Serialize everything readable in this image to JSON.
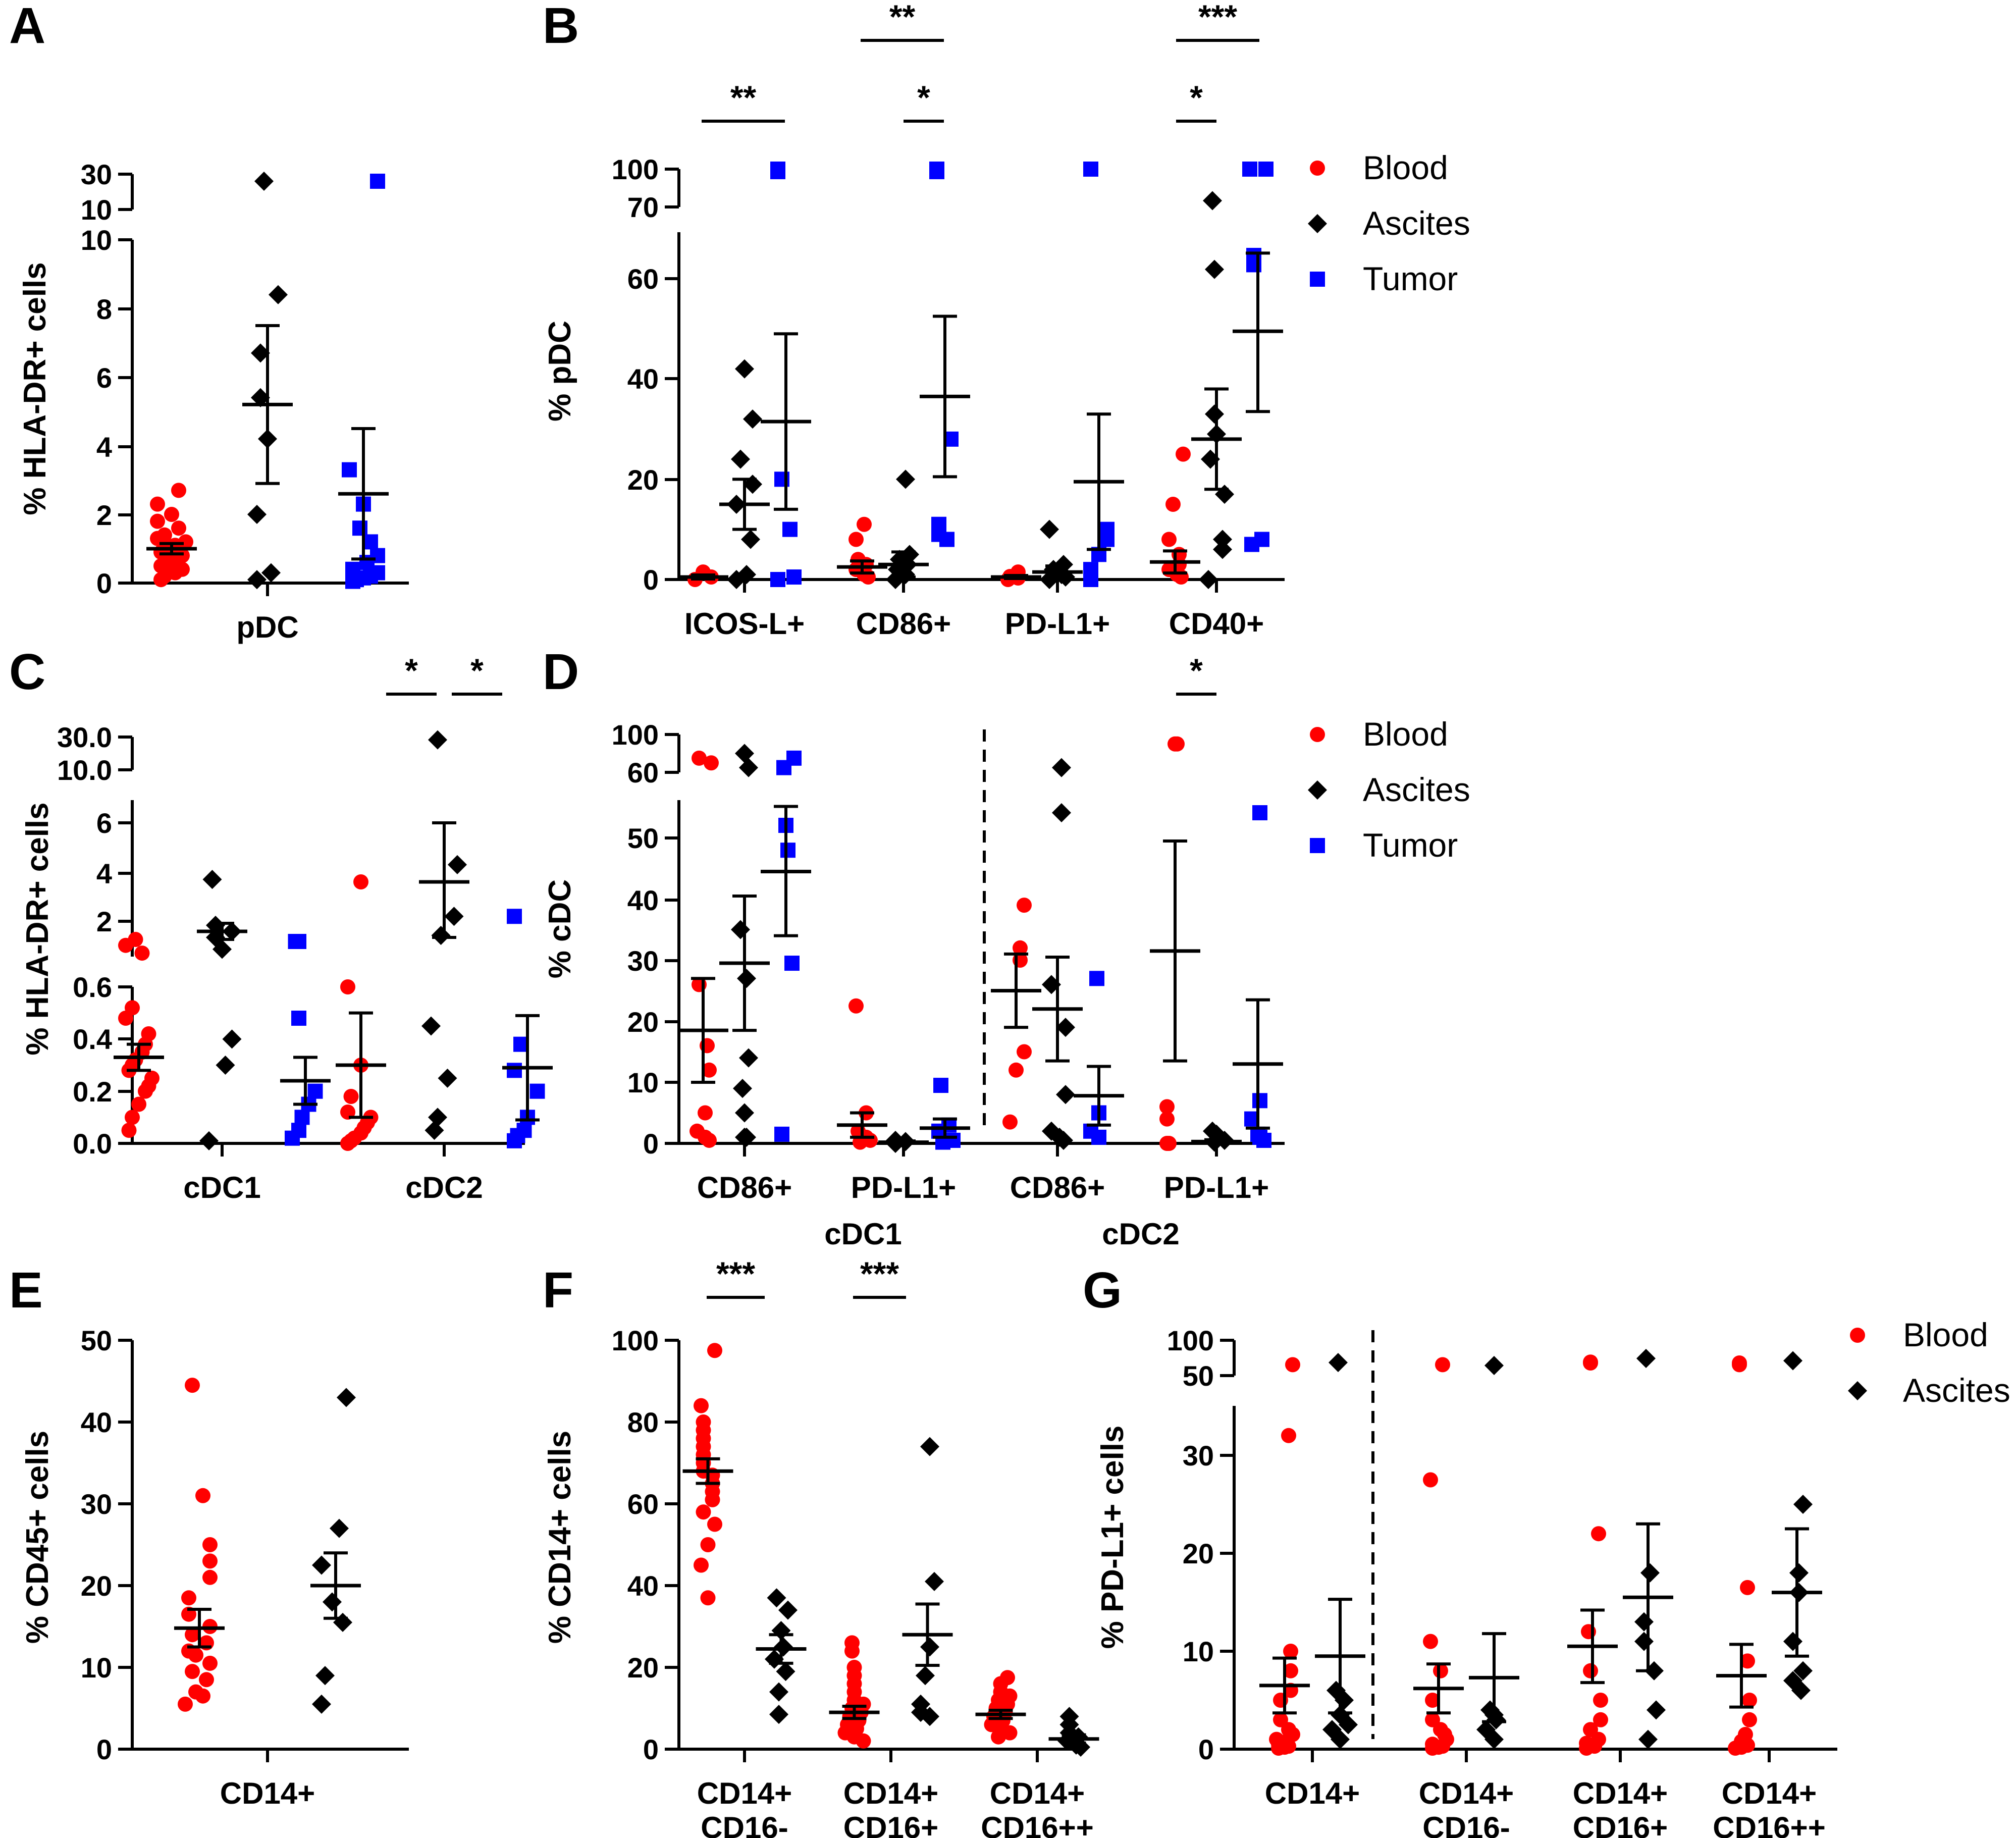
{
  "colors": {
    "Blood": "#ff0000",
    "Ascites": "#000000",
    "Tumor": "#0000ff"
  },
  "chart_data": [
    {
      "panel": "A",
      "type": "scatter",
      "ylabel": "% HLA-DR+ cells",
      "yaxis": {
        "ticks": [
          "0",
          "2",
          "4",
          "6",
          "8",
          "10"
        ],
        "break_ticks": [
          "10",
          "30"
        ]
      },
      "categories": [
        "pDC"
      ],
      "series": [
        {
          "name": "Blood",
          "values": [
            [
              0.1,
              0.3,
              0.4,
              0.5,
              0.6,
              0.7,
              0.8,
              0.9,
              1.0,
              1.1,
              1.2,
              1.4,
              1.6,
              1.8,
              2.0,
              2.3,
              2.7,
              0.2,
              0.9,
              1.3
            ]
          ],
          "mean": [
            1.0
          ],
          "sem": [
            0.15
          ]
        },
        {
          "name": "Ascites",
          "values": [
            [
              0.1,
              0.3,
              2.0,
              4.2,
              5.4,
              6.7,
              8.4,
              26
            ]
          ],
          "mean": [
            5.2
          ],
          "sem": [
            2.3
          ]
        },
        {
          "name": "Tumor",
          "values": [
            [
              0.05,
              0.1,
              0.15,
              0.2,
              0.3,
              0.4,
              0.6,
              0.8,
              1.2,
              1.6,
              2.3,
              3.3,
              26
            ]
          ],
          "mean": [
            2.6
          ],
          "sem": [
            1.9
          ]
        }
      ],
      "group_labels": [
        "pDC"
      ]
    },
    {
      "panel": "B",
      "type": "scatter",
      "ylabel": "% pDC",
      "yaxis": {
        "ticks": [
          "0",
          "20",
          "40",
          "60"
        ],
        "break_ticks": [
          "70",
          "100"
        ]
      },
      "categories": [
        "ICOS-L+",
        "CD86+",
        "PD-L1+",
        "CD40+"
      ],
      "series": [
        {
          "name": "Blood",
          "values": [
            [
              0,
              0.5,
              1.5
            ],
            [
              0.5,
              1,
              2,
              3,
              4,
              8,
              11
            ],
            [
              0,
              0.3,
              0.6,
              1.5
            ],
            [
              0.5,
              1,
              2,
              3,
              5,
              8,
              15,
              25
            ]
          ],
          "mean": [
            0.5,
            2.5,
            0.5,
            3.5
          ],
          "sem": [
            0.4,
            1.2,
            0.3,
            2.2
          ]
        },
        {
          "name": "Ascites",
          "values": [
            [
              0,
              1,
              8,
              15,
              19,
              24,
              32,
              42
            ],
            [
              0,
              1,
              2,
              3,
              4,
              5,
              20
            ],
            [
              0,
              0.5,
              1,
              2,
              3,
              10
            ],
            [
              0,
              6,
              8,
              17,
              24,
              29,
              33,
              62,
              75
            ]
          ],
          "mean": [
            15,
            3,
            1.5,
            28
          ],
          "sem": [
            5,
            2.5,
            1.2,
            10
          ]
        },
        {
          "name": "Tumor",
          "values": [
            [
              0,
              0.5,
              10,
              20,
              98,
              100
            ],
            [
              8,
              9,
              11,
              28,
              98,
              100
            ],
            [
              0,
              2,
              5,
              8,
              10,
              100
            ],
            [
              7,
              8,
              63,
              65,
              100,
              100
            ]
          ],
          "mean": [
            31.5,
            36.5,
            19.5,
            49.5
          ],
          "sem": [
            17.5,
            16,
            13.5,
            16
          ]
        }
      ],
      "significance": [
        "**",
        "**",
        "*",
        "***",
        "*"
      ],
      "legend": [
        "Blood",
        "Ascites",
        "Tumor"
      ]
    },
    {
      "panel": "C",
      "type": "scatter",
      "ylabel": "% HLA-DR+ cells",
      "yaxis": {
        "ticks": [
          "0.0",
          "0.2",
          "0.4",
          "0.6"
        ],
        "mid_ticks": [
          "2",
          "4",
          "6"
        ],
        "break_ticks": [
          "10.0",
          "30.0"
        ]
      },
      "categories": [
        "cDC1",
        "cDC2"
      ],
      "series": [
        {
          "name": "Blood",
          "values": [
            [
              0.05,
              0.1,
              0.15,
              0.2,
              0.22,
              0.25,
              0.28,
              0.3,
              0.32,
              0.35,
              0.38,
              0.42,
              0.48,
              0.52,
              0.7,
              0.9,
              1.1
            ],
            [
              0,
              0.01,
              0.02,
              0.04,
              0.06,
              0.08,
              0.1,
              0.12,
              0.18,
              0.3,
              0.6,
              3.6
            ]
          ],
          "mean": [
            0.33,
            0.3
          ],
          "sem": [
            0.05,
            0.2
          ]
        },
        {
          "name": "Ascites",
          "values": [
            [
              0.01,
              0.3,
              0.4,
              0.8,
              1.2,
              1.5,
              1.8,
              3.7
            ],
            [
              0.05,
              0.1,
              0.25,
              0.45,
              1.3,
              2.2,
              4.3,
              28
            ]
          ],
          "mean": [
            1.5,
            3.6
          ],
          "sem": [
            0.4,
            2.4
          ]
        },
        {
          "name": "Tumor",
          "values": [
            [
              0.02,
              0.05,
              0.1,
              0.15,
              0.2,
              0.48,
              1.0,
              1.0
            ],
            [
              0.01,
              0.03,
              0.05,
              0.1,
              0.2,
              0.28,
              0.38,
              2.2
            ]
          ],
          "mean": [
            0.24,
            0.29
          ],
          "sem": [
            0.09,
            0.2
          ]
        }
      ],
      "significance": [
        "*",
        "*"
      ]
    },
    {
      "panel": "D",
      "type": "scatter",
      "ylabel": "% cDC",
      "yaxis": {
        "ticks": [
          "0",
          "10",
          "20",
          "30",
          "40",
          "50"
        ],
        "break_ticks": [
          "60",
          "100"
        ]
      },
      "categories": [
        "CD86+",
        "PD-L1+",
        "CD86+",
        "PD-L1+"
      ],
      "group_labels": [
        "cDC1",
        "cDC2"
      ],
      "series": [
        {
          "name": "Blood",
          "values": [
            [
              0.5,
              1,
              2,
              5,
              12,
              16,
              26,
              70,
              75
            ],
            [
              0.2,
              0.5,
              1,
              2,
              5,
              22.5
            ],
            [
              3.5,
              12,
              15,
              30,
              32,
              39
            ],
            [
              0,
              0,
              4,
              6,
              90,
              90
            ]
          ],
          "mean": [
            18.5,
            3,
            25,
            31.5
          ],
          "sem": [
            8.5,
            2,
            6,
            18
          ]
        },
        {
          "name": "Ascites",
          "values": [
            [
              1,
              1,
              5,
              9,
              14,
              27,
              35,
              65,
              80
            ],
            [
              0,
              0.3,
              0.5
            ],
            [
              0.5,
              1,
              2,
              8,
              19,
              26,
              54,
              65
            ],
            [
              0.2,
              0.5,
              1.5,
              2
            ]
          ],
          "mean": [
            29.5,
            0.2,
            22,
            0.3
          ],
          "sem": [
            11,
            0.2,
            8.5,
            0.3
          ]
        },
        {
          "name": "Tumor",
          "values": [
            [
              1.5,
              29.5,
              48,
              52,
              65,
              75
            ],
            [
              0.2,
              0.5,
              2,
              3,
              9.5
            ],
            [
              1,
              2,
              5,
              27
            ],
            [
              0.5,
              1,
              1.5,
              4,
              7,
              54
            ]
          ],
          "mean": [
            44.5,
            2.5,
            7.8,
            13
          ],
          "sem": [
            10.5,
            1.5,
            4.8,
            10.5
          ]
        }
      ],
      "significance": [
        "*"
      ],
      "legend": [
        "Blood",
        "Ascites",
        "Tumor"
      ]
    },
    {
      "panel": "E",
      "type": "scatter",
      "ylabel": "% CD45+ cells",
      "yaxis": {
        "ticks": [
          "0",
          "10",
          "20",
          "30",
          "40",
          "50"
        ],
        "ylim": [
          0,
          50
        ]
      },
      "categories": [
        "CD14+"
      ],
      "series": [
        {
          "name": "Blood",
          "values": [
            [
              5.5,
              6.5,
              7,
              8.5,
              9.5,
              10.5,
              11.5,
              12,
              13,
              14,
              15,
              16.5,
              18.5,
              21,
              23,
              25,
              31,
              44.5
            ]
          ],
          "mean": [
            14.8
          ],
          "sem": [
            2.3
          ]
        },
        {
          "name": "Ascites",
          "values": [
            [
              5.5,
              9,
              15.5,
              18,
              22.5,
              27,
              43
            ]
          ],
          "mean": [
            20
          ],
          "sem": [
            4
          ]
        }
      ]
    },
    {
      "panel": "F",
      "type": "scatter",
      "ylabel": "% CD14+ cells",
      "yaxis": {
        "ticks": [
          "0",
          "20",
          "40",
          "60",
          "80",
          "100"
        ],
        "ylim": [
          0,
          100
        ]
      },
      "categories": [
        "CD14+\nCD16-",
        "CD14+\nCD16+",
        "CD14+\nCD16++"
      ],
      "series": [
        {
          "name": "Blood",
          "values": [
            [
              37,
              45,
              50,
              55,
              58,
              61,
              63,
              65,
              67,
              68,
              70,
              72,
              74,
              76,
              78,
              80,
              84,
              97.5
            ],
            [
              2,
              3,
              4,
              5,
              6,
              7,
              8,
              9,
              10,
              11,
              12,
              14,
              16,
              18,
              20,
              24,
              26
            ],
            [
              3,
              4,
              5,
              6,
              7,
              8,
              9,
              10,
              11,
              12,
              13,
              14,
              16,
              17.5
            ]
          ],
          "mean": [
            68,
            9,
            8.5
          ],
          "sem": [
            3,
            1.5,
            1
          ]
        },
        {
          "name": "Ascites",
          "values": [
            [
              8.5,
              14,
              19,
              22,
              25,
              29,
              34,
              37
            ],
            [
              8,
              9,
              11,
              18,
              25,
              41,
              74
            ],
            [
              0.5,
              1,
              2,
              3,
              4,
              6,
              8
            ]
          ],
          "mean": [
            24.5,
            28,
            2.5
          ],
          "sem": [
            3.5,
            7.5,
            1
          ]
        }
      ],
      "significance": [
        "***",
        "***"
      ]
    },
    {
      "panel": "G",
      "type": "scatter",
      "ylabel": "% PD-L1+ cells",
      "yaxis": {
        "ticks": [
          "0",
          "10",
          "20",
          "30"
        ],
        "break_ticks": [
          "50",
          "100"
        ]
      },
      "categories": [
        "CD14+",
        "CD14+\nCD16-",
        "CD14+\nCD16+",
        "CD14+\nCD16++"
      ],
      "series": [
        {
          "name": "Blood",
          "values": [
            [
              0.1,
              0.2,
              0.3,
              0.5,
              0.8,
              1,
              1.5,
              2,
              3,
              5,
              6,
              8,
              10,
              32,
              48
            ],
            [
              0.1,
              0.2,
              0.3,
              0.5,
              1,
              1.5,
              2,
              3,
              5,
              8,
              11,
              27.5,
              48
            ],
            [
              0.1,
              0.3,
              0.6,
              1,
              2,
              3,
              5,
              8,
              12,
              22,
              50,
              52
            ],
            [
              0.1,
              0.2,
              0.4,
              0.8,
              1.5,
              3,
              5,
              9,
              16.5,
              48,
              50
            ]
          ],
          "mean": [
            6.5,
            6.2,
            10.5,
            7.5
          ],
          "sem": [
            2.8,
            2.5,
            3.7,
            3.2
          ]
        },
        {
          "name": "Ascites",
          "values": [
            [
              1,
              2,
              2.5,
              3.5,
              5,
              6,
              51
            ],
            [
              1,
              2,
              3,
              3.5,
              4,
              47
            ],
            [
              1,
              4,
              8,
              11,
              13,
              18,
              60
            ],
            [
              6,
              7,
              8,
              11,
              16,
              18,
              25,
              55
            ]
          ],
          "mean": [
            9.5,
            7.3,
            15.5,
            16
          ],
          "sem": [
            5.8,
            4.5,
            7.5,
            6.5
          ]
        }
      ],
      "legend": [
        "Blood",
        "Ascites"
      ]
    }
  ]
}
